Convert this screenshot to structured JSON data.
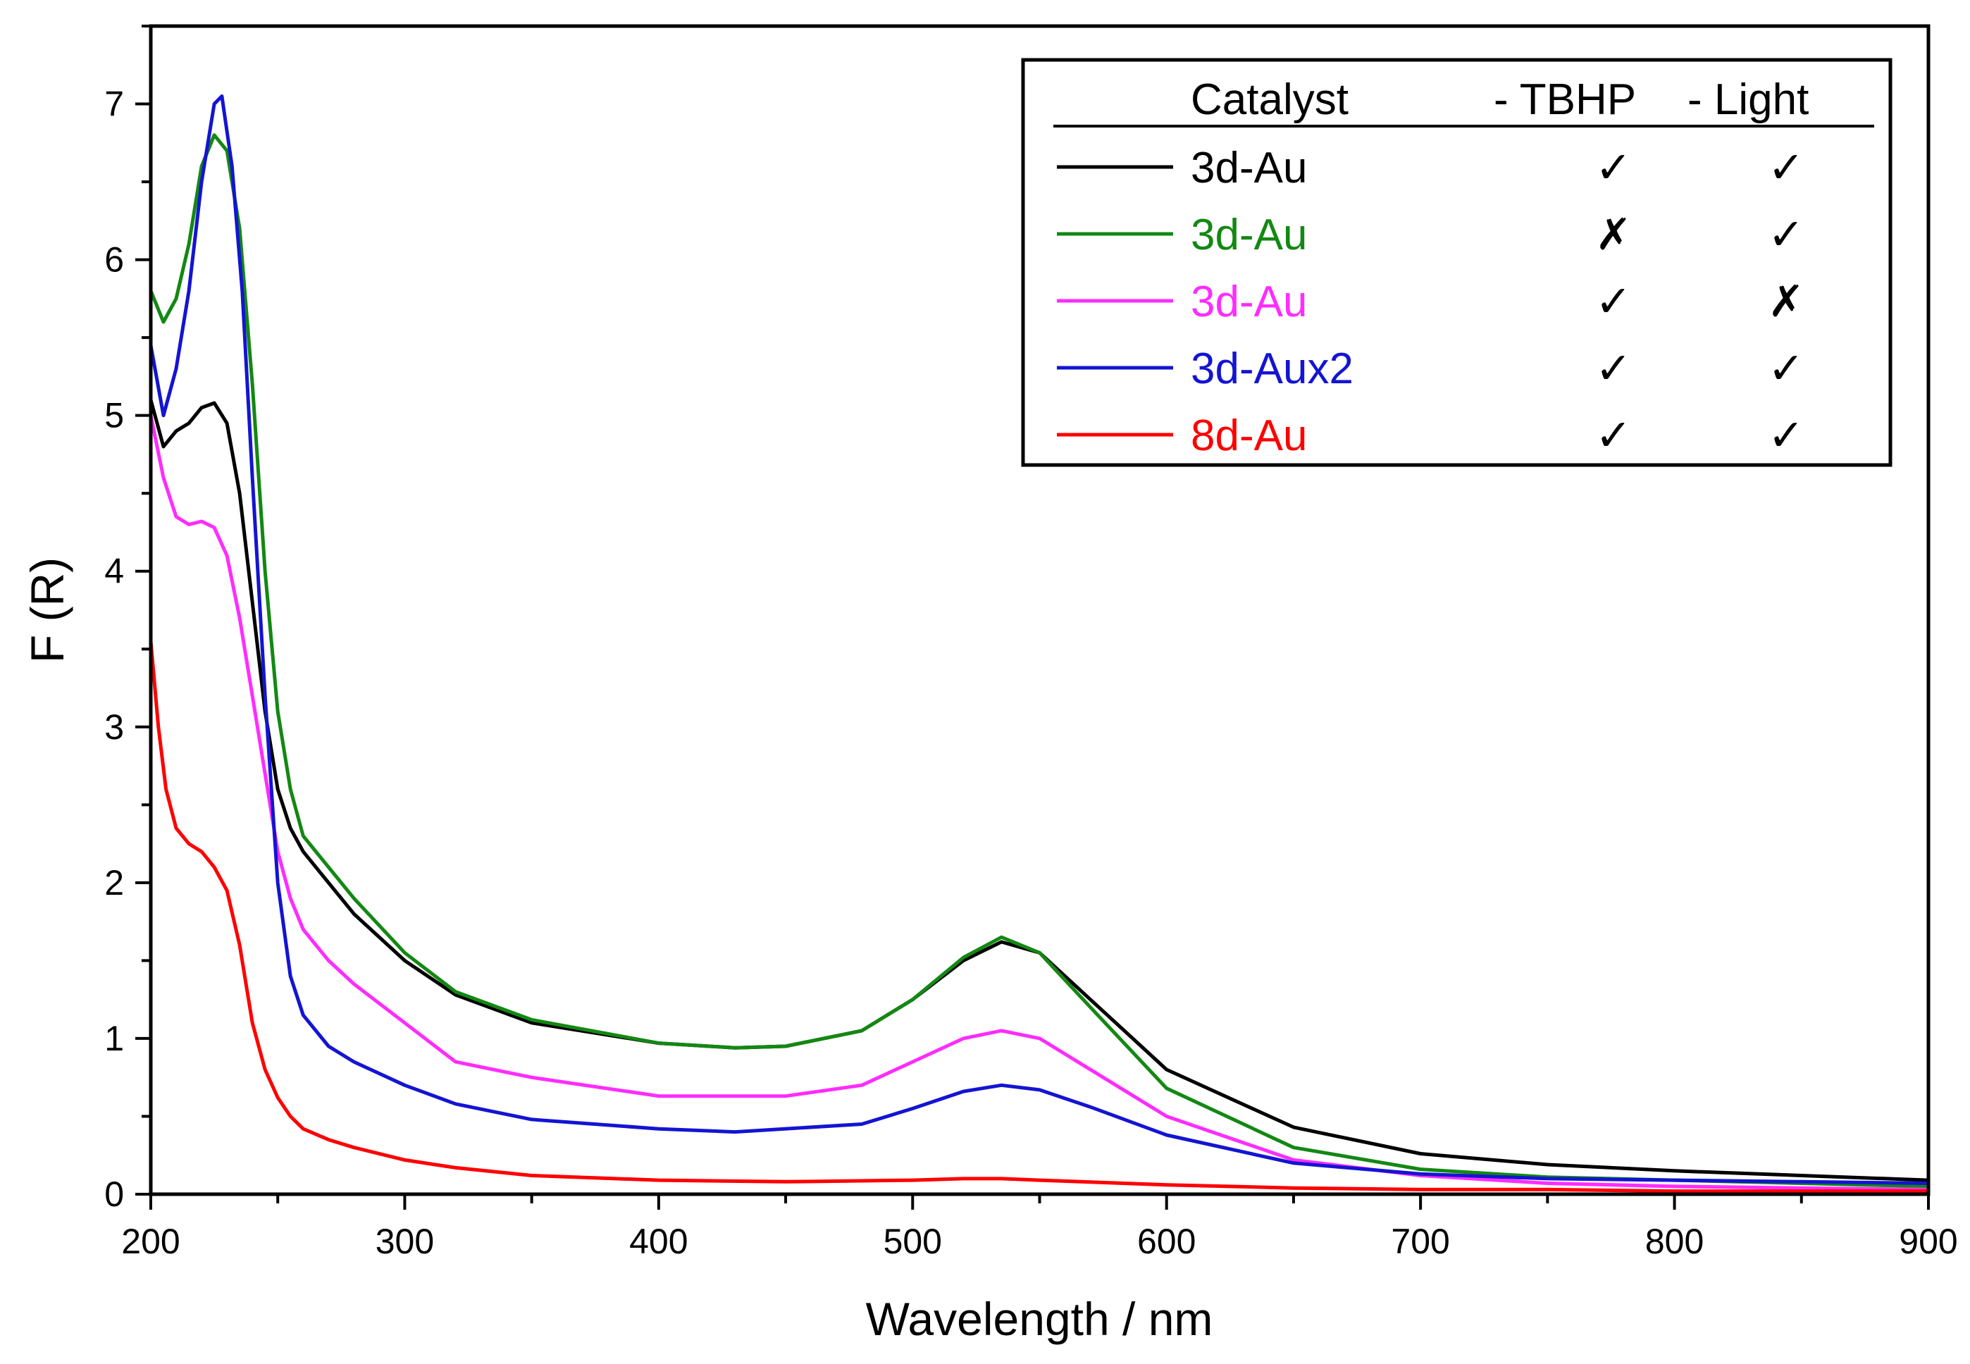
{
  "chart_data": {
    "type": "line",
    "title": "",
    "xlabel": "Wavelength / nm",
    "ylabel": "F (R)",
    "xlim": [
      200,
      900
    ],
    "ylim": [
      0,
      7.5
    ],
    "xticks": [
      200,
      300,
      400,
      500,
      600,
      700,
      800,
      900
    ],
    "yticks": [
      0,
      1,
      2,
      3,
      4,
      5,
      6,
      7
    ],
    "grid": false,
    "legend": {
      "position": "top-right",
      "header": {
        "catalyst": "Catalyst",
        "tbhp": "- TBHP",
        "light": "- Light"
      },
      "entries": [
        {
          "label": "3d-Au",
          "tbhp": "✓",
          "light": "✓",
          "color": "#000000"
        },
        {
          "label": "3d-Au",
          "tbhp": "✗",
          "light": "✓",
          "color": "#138813"
        },
        {
          "label": "3d-Au",
          "tbhp": "✓",
          "light": "✗",
          "color": "#ff2cff"
        },
        {
          "label": "3d-Aux2",
          "tbhp": "✓",
          "light": "✓",
          "color": "#1414d2"
        },
        {
          "label": "8d-Au",
          "tbhp": "✓",
          "light": "✓",
          "color": "#ff0000"
        }
      ]
    },
    "series": [
      {
        "name": "3d-Au",
        "color": "#000000",
        "x": [
          200,
          205,
          210,
          215,
          220,
          225,
          230,
          235,
          240,
          245,
          250,
          255,
          260,
          270,
          280,
          300,
          320,
          350,
          400,
          430,
          450,
          480,
          500,
          520,
          535,
          550,
          570,
          600,
          650,
          700,
          750,
          800,
          850,
          900
        ],
        "y": [
          5.1,
          4.8,
          4.9,
          4.95,
          5.05,
          5.08,
          4.95,
          4.5,
          3.8,
          3.1,
          2.6,
          2.35,
          2.2,
          2.0,
          1.8,
          1.5,
          1.28,
          1.1,
          0.97,
          0.94,
          0.95,
          1.05,
          1.25,
          1.5,
          1.62,
          1.55,
          1.25,
          0.8,
          0.43,
          0.26,
          0.19,
          0.15,
          0.12,
          0.09
        ]
      },
      {
        "name": "3d-Au",
        "color": "#138813",
        "x": [
          200,
          205,
          210,
          215,
          220,
          225,
          230,
          235,
          240,
          245,
          250,
          255,
          260,
          270,
          280,
          300,
          320,
          350,
          400,
          430,
          450,
          480,
          500,
          520,
          535,
          550,
          570,
          600,
          650,
          700,
          750,
          800,
          850,
          900
        ],
        "y": [
          5.8,
          5.6,
          5.75,
          6.1,
          6.6,
          6.8,
          6.7,
          6.2,
          5.2,
          4.0,
          3.1,
          2.6,
          2.3,
          2.1,
          1.9,
          1.55,
          1.3,
          1.12,
          0.97,
          0.94,
          0.95,
          1.05,
          1.25,
          1.52,
          1.65,
          1.55,
          1.2,
          0.68,
          0.3,
          0.16,
          0.11,
          0.09,
          0.07,
          0.05
        ]
      },
      {
        "name": "3d-Au",
        "color": "#ff2cff",
        "x": [
          200,
          205,
          210,
          215,
          220,
          225,
          230,
          235,
          240,
          245,
          250,
          255,
          260,
          270,
          280,
          300,
          320,
          350,
          400,
          450,
          480,
          500,
          520,
          535,
          550,
          570,
          600,
          650,
          700,
          750,
          800,
          850,
          900
        ],
        "y": [
          5.0,
          4.6,
          4.35,
          4.3,
          4.32,
          4.28,
          4.1,
          3.7,
          3.2,
          2.7,
          2.2,
          1.9,
          1.7,
          1.5,
          1.35,
          1.1,
          0.85,
          0.75,
          0.63,
          0.63,
          0.7,
          0.85,
          1.0,
          1.05,
          1.0,
          0.8,
          0.5,
          0.22,
          0.12,
          0.07,
          0.05,
          0.04,
          0.03
        ]
      },
      {
        "name": "3d-Aux2",
        "color": "#1414d2",
        "x": [
          200,
          205,
          210,
          215,
          220,
          225,
          228,
          232,
          236,
          240,
          245,
          250,
          255,
          260,
          270,
          280,
          300,
          320,
          350,
          400,
          430,
          480,
          500,
          520,
          535,
          550,
          570,
          600,
          650,
          700,
          750,
          800,
          850,
          900
        ],
        "y": [
          5.45,
          5.0,
          5.3,
          5.8,
          6.5,
          7.0,
          7.05,
          6.6,
          5.8,
          4.6,
          3.2,
          2.0,
          1.4,
          1.15,
          0.95,
          0.85,
          0.7,
          0.58,
          0.48,
          0.42,
          0.4,
          0.45,
          0.55,
          0.66,
          0.7,
          0.67,
          0.56,
          0.38,
          0.2,
          0.13,
          0.1,
          0.09,
          0.08,
          0.07
        ]
      },
      {
        "name": "8d-Au",
        "color": "#ff0000",
        "x": [
          200,
          203,
          206,
          210,
          215,
          220,
          225,
          230,
          235,
          240,
          245,
          250,
          255,
          260,
          270,
          280,
          300,
          320,
          350,
          400,
          450,
          500,
          520,
          535,
          550,
          600,
          650,
          700,
          750,
          800,
          850,
          900
        ],
        "y": [
          3.55,
          3.0,
          2.6,
          2.35,
          2.25,
          2.2,
          2.1,
          1.95,
          1.6,
          1.1,
          0.8,
          0.62,
          0.5,
          0.42,
          0.35,
          0.3,
          0.22,
          0.17,
          0.12,
          0.09,
          0.08,
          0.09,
          0.1,
          0.1,
          0.09,
          0.06,
          0.04,
          0.03,
          0.03,
          0.02,
          0.02,
          0.02
        ]
      }
    ]
  }
}
